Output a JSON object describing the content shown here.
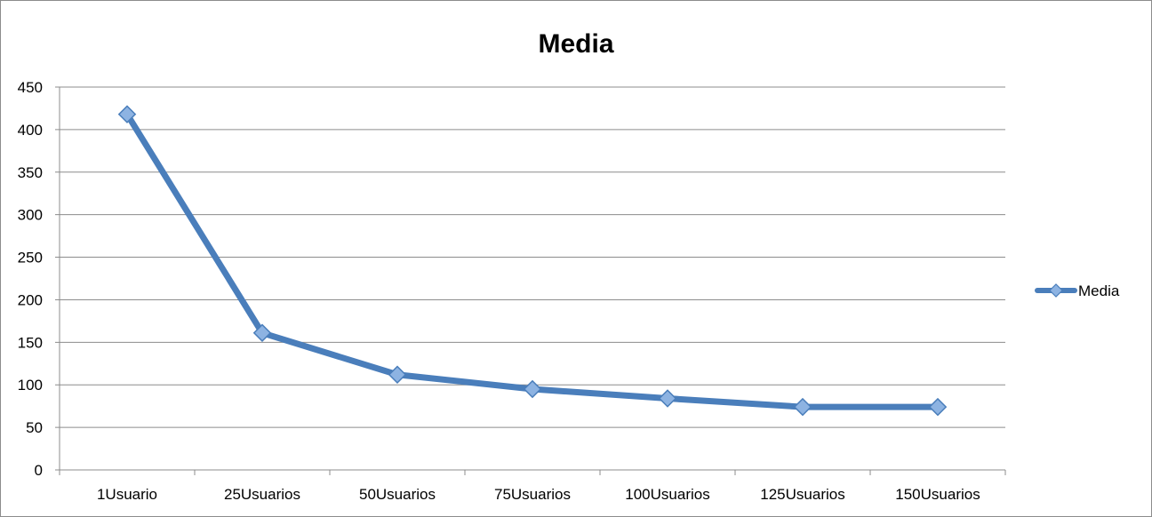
{
  "chart_data": {
    "type": "line",
    "title": "Media",
    "xlabel": "",
    "ylabel": "",
    "categories": [
      "1Usuario",
      "25Usuarios",
      "50Usuarios",
      "75Usuarios",
      "100Usuarios",
      "125Usuarios",
      "150Usuarios"
    ],
    "series": [
      {
        "name": "Media",
        "values": [
          418,
          161,
          112,
          95,
          84,
          74,
          74
        ],
        "color": "#4a7ebb",
        "marker": "diamond"
      }
    ],
    "ylim": [
      0,
      450
    ],
    "yticks": [
      0,
      50,
      100,
      150,
      200,
      250,
      300,
      350,
      400,
      450
    ],
    "grid": true,
    "legend": "right"
  }
}
